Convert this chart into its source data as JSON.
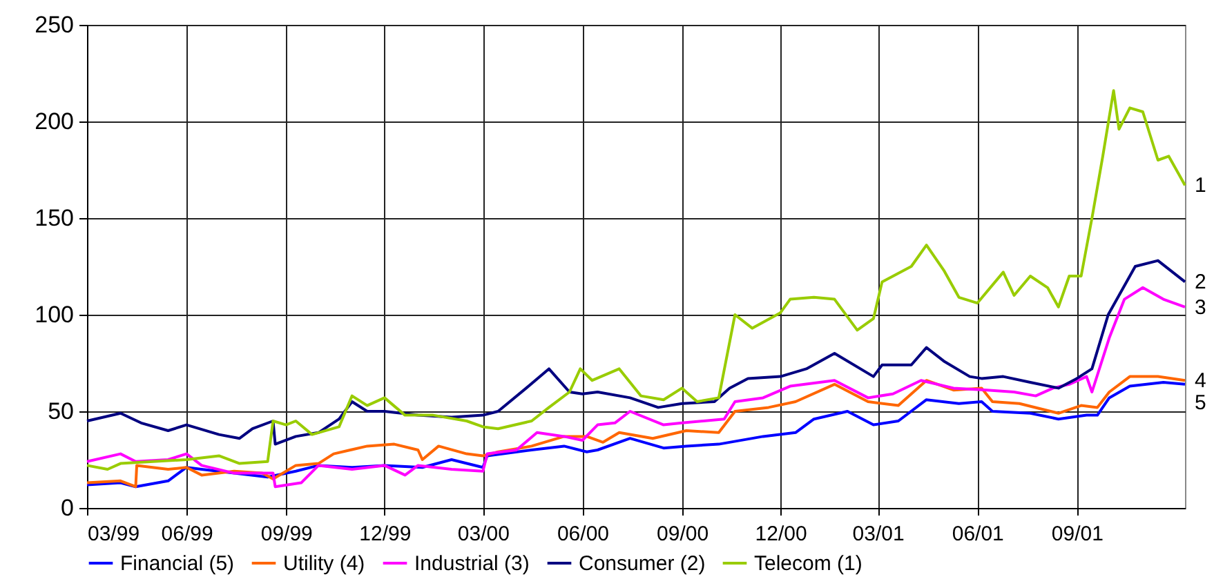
{
  "chart_data": {
    "type": "line",
    "xlim": [
      "1999-03-01",
      "2001-12-10"
    ],
    "ylim": [
      0,
      250
    ],
    "yticks": [
      0,
      50,
      100,
      150,
      200,
      250
    ],
    "xticks": [
      {
        "value": "1999-03-01",
        "label": "03/99"
      },
      {
        "value": "1999-06-01",
        "label": "06/99"
      },
      {
        "value": "1999-09-01",
        "label": "09/99"
      },
      {
        "value": "1999-12-01",
        "label": "12/99"
      },
      {
        "value": "2000-03-01",
        "label": "03/00"
      },
      {
        "value": "2000-06-01",
        "label": "06/00"
      },
      {
        "value": "2000-09-01",
        "label": "09/00"
      },
      {
        "value": "2000-12-01",
        "label": "12/00"
      },
      {
        "value": "2001-03-01",
        "label": "03/01"
      },
      {
        "value": "2001-06-01",
        "label": "06/01"
      },
      {
        "value": "2001-09-01",
        "label": "09/01"
      }
    ],
    "grid": true,
    "legend": "bottom",
    "marker": "none",
    "line_style": "solid",
    "annotations": [
      "1",
      "2",
      "3",
      "4",
      "5"
    ],
    "series": [
      {
        "name": "Financial (5)",
        "color": "#0000ff",
        "x": [
          "1999-03-01",
          "1999-04-01",
          "1999-04-15",
          "1999-05-15",
          "1999-06-01",
          "1999-06-15",
          "1999-07-15",
          "1999-08-15",
          "1999-09-10",
          "1999-10-01",
          "1999-11-01",
          "1999-12-01",
          "2000-01-05",
          "2000-02-01",
          "2000-03-01",
          "2000-03-05",
          "2000-04-15",
          "2000-05-15",
          "2000-06-05",
          "2000-06-15",
          "2000-07-15",
          "2000-08-15",
          "2000-09-05",
          "2000-10-05",
          "2000-11-15",
          "2000-12-15",
          "2001-01-01",
          "2001-02-01",
          "2001-02-25",
          "2001-03-20",
          "2001-04-15",
          "2001-05-15",
          "2001-06-05",
          "2001-06-15",
          "2001-07-20",
          "2001-08-15",
          "2001-09-10",
          "2001-09-20",
          "2001-10-01",
          "2001-10-20",
          "2001-11-20",
          "2001-12-10"
        ],
        "values": [
          12,
          13,
          11,
          14,
          21,
          20,
          18,
          16,
          19,
          22,
          21,
          22,
          21,
          25,
          21,
          27,
          30,
          32,
          29,
          30,
          36,
          31,
          32,
          33,
          37,
          39,
          46,
          50,
          43,
          45,
          56,
          54,
          55,
          50,
          49,
          46,
          48,
          48,
          57,
          63,
          65,
          64
        ]
      },
      {
        "name": "Utility (4)",
        "color": "#ff6600",
        "x": [
          "1999-03-01",
          "1999-04-01",
          "1999-04-15",
          "1999-04-16",
          "1999-05-15",
          "1999-06-01",
          "1999-06-15",
          "1999-07-15",
          "1999-08-10",
          "1999-08-20",
          "1999-09-10",
          "1999-10-01",
          "1999-10-15",
          "1999-11-15",
          "1999-12-10",
          "2000-01-01",
          "2000-01-05",
          "2000-01-20",
          "2000-02-15",
          "2000-03-01",
          "2000-03-15",
          "2000-04-15",
          "2000-05-15",
          "2000-06-05",
          "2000-06-20",
          "2000-07-05",
          "2000-08-05",
          "2000-09-05",
          "2000-10-05",
          "2000-10-20",
          "2000-11-20",
          "2000-12-15",
          "2001-01-20",
          "2001-02-20",
          "2001-03-20",
          "2001-04-15",
          "2001-05-10",
          "2001-06-05",
          "2001-06-15",
          "2001-07-10",
          "2001-08-15",
          "2001-09-05",
          "2001-09-20",
          "2001-10-01",
          "2001-10-20",
          "2001-11-15",
          "2001-12-10"
        ],
        "values": [
          13,
          14,
          11,
          22,
          20,
          21,
          17,
          19,
          18,
          15,
          22,
          23,
          28,
          32,
          33,
          30,
          25,
          32,
          28,
          27,
          29,
          32,
          37,
          37,
          34,
          39,
          36,
          40,
          39,
          50,
          52,
          55,
          64,
          55,
          53,
          66,
          61,
          62,
          55,
          54,
          49,
          53,
          52,
          60,
          68,
          68,
          66
        ]
      },
      {
        "name": "Industrial (3)",
        "color": "#ff00ff",
        "x": [
          "1999-03-01",
          "1999-04-01",
          "1999-04-15",
          "1999-05-15",
          "1999-06-01",
          "1999-06-15",
          "1999-07-15",
          "1999-08-20",
          "1999-08-22",
          "1999-09-15",
          "1999-10-01",
          "1999-11-01",
          "1999-12-01",
          "1999-12-20",
          "2000-01-01",
          "2000-02-01",
          "2000-03-01",
          "2000-03-05",
          "2000-04-01",
          "2000-04-20",
          "2000-05-15",
          "2000-06-01",
          "2000-06-15",
          "2000-07-01",
          "2000-07-15",
          "2000-08-15",
          "2000-09-01",
          "2000-10-10",
          "2000-10-20",
          "2000-11-15",
          "2000-12-10",
          "2001-01-20",
          "2001-02-20",
          "2001-03-15",
          "2001-04-10",
          "2001-05-10",
          "2001-06-10",
          "2001-07-05",
          "2001-07-25",
          "2001-08-10",
          "2001-08-25",
          "2001-09-10",
          "2001-09-15",
          "2001-10-01",
          "2001-10-15",
          "2001-11-01",
          "2001-11-20",
          "2001-12-10"
        ],
        "values": [
          24,
          28,
          24,
          25,
          28,
          22,
          18,
          18,
          11,
          13,
          22,
          20,
          22,
          17,
          22,
          20,
          19,
          28,
          30,
          39,
          37,
          35,
          43,
          44,
          50,
          43,
          44,
          46,
          55,
          57,
          63,
          66,
          57,
          59,
          66,
          62,
          61,
          60,
          58,
          62,
          64,
          68,
          60,
          88,
          108,
          114,
          108,
          104
        ]
      },
      {
        "name": "Consumer (2)",
        "color": "#000080",
        "x": [
          "1999-03-01",
          "1999-04-01",
          "1999-04-20",
          "1999-05-15",
          "1999-06-01",
          "1999-07-01",
          "1999-07-20",
          "1999-08-01",
          "1999-08-20",
          "1999-08-22",
          "1999-09-10",
          "1999-10-01",
          "1999-10-20",
          "1999-11-01",
          "1999-11-15",
          "1999-12-01",
          "2000-01-01",
          "2000-02-01",
          "2000-03-01",
          "2000-03-15",
          "2000-04-10",
          "2000-05-01",
          "2000-05-20",
          "2000-06-01",
          "2000-06-15",
          "2000-07-15",
          "2000-08-10",
          "2000-09-01",
          "2000-10-01",
          "2000-10-15",
          "2000-11-01",
          "2000-12-01",
          "2000-12-25",
          "2001-01-20",
          "2001-02-25",
          "2001-03-05",
          "2001-04-01",
          "2001-04-15",
          "2001-05-01",
          "2001-05-25",
          "2001-06-05",
          "2001-06-25",
          "2001-07-20",
          "2001-08-15",
          "2001-09-01",
          "2001-09-15",
          "2001-09-30",
          "2001-10-25",
          "2001-11-15",
          "2001-12-10"
        ],
        "values": [
          45,
          49,
          44,
          40,
          43,
          38,
          36,
          41,
          45,
          33,
          37,
          39,
          46,
          55,
          50,
          50,
          48,
          47,
          48,
          50,
          62,
          72,
          60,
          59,
          60,
          57,
          52,
          54,
          55,
          62,
          67,
          68,
          72,
          80,
          68,
          74,
          74,
          83,
          76,
          68,
          67,
          68,
          65,
          62,
          67,
          72,
          100,
          125,
          128,
          117
        ]
      },
      {
        "name": "Telecom (1)",
        "color": "#99cc00",
        "x": [
          "1999-03-01",
          "1999-03-20",
          "1999-04-01",
          "1999-05-01",
          "1999-06-01",
          "1999-07-01",
          "1999-07-20",
          "1999-08-15",
          "1999-08-20",
          "1999-09-01",
          "1999-09-10",
          "1999-09-25",
          "1999-10-20",
          "1999-11-01",
          "1999-11-15",
          "1999-12-01",
          "1999-12-20",
          "2000-01-15",
          "2000-02-15",
          "2000-03-01",
          "2000-03-15",
          "2000-04-15",
          "2000-05-01",
          "2000-05-20",
          "2000-05-30",
          "2000-06-10",
          "2000-07-05",
          "2000-07-25",
          "2000-08-15",
          "2000-09-01",
          "2000-09-15",
          "2000-10-05",
          "2000-10-20",
          "2000-11-05",
          "2000-12-01",
          "2000-12-10",
          "2001-01-01",
          "2001-01-20",
          "2001-02-10",
          "2001-02-25",
          "2001-03-05",
          "2001-04-01",
          "2001-04-15",
          "2001-05-01",
          "2001-05-15",
          "2001-06-01",
          "2001-06-25",
          "2001-07-05",
          "2001-07-20",
          "2001-08-05",
          "2001-08-15",
          "2001-08-25",
          "2001-09-05",
          "2001-09-15",
          "2001-09-25",
          "2001-10-05",
          "2001-10-10",
          "2001-10-20",
          "2001-11-01",
          "2001-11-15",
          "2001-11-25",
          "2001-12-10"
        ],
        "values": [
          22,
          20,
          23,
          24,
          25,
          27,
          23,
          24,
          45,
          43,
          45,
          38,
          42,
          58,
          53,
          57,
          48,
          48,
          45,
          42,
          41,
          45,
          52,
          60,
          72,
          66,
          72,
          58,
          56,
          62,
          55,
          57,
          100,
          93,
          101,
          108,
          109,
          108,
          92,
          98,
          117,
          125,
          136,
          123,
          109,
          106,
          122,
          110,
          120,
          114,
          104,
          120,
          120,
          150,
          182,
          216,
          196,
          207,
          205,
          180,
          182,
          167
        ]
      }
    ]
  }
}
